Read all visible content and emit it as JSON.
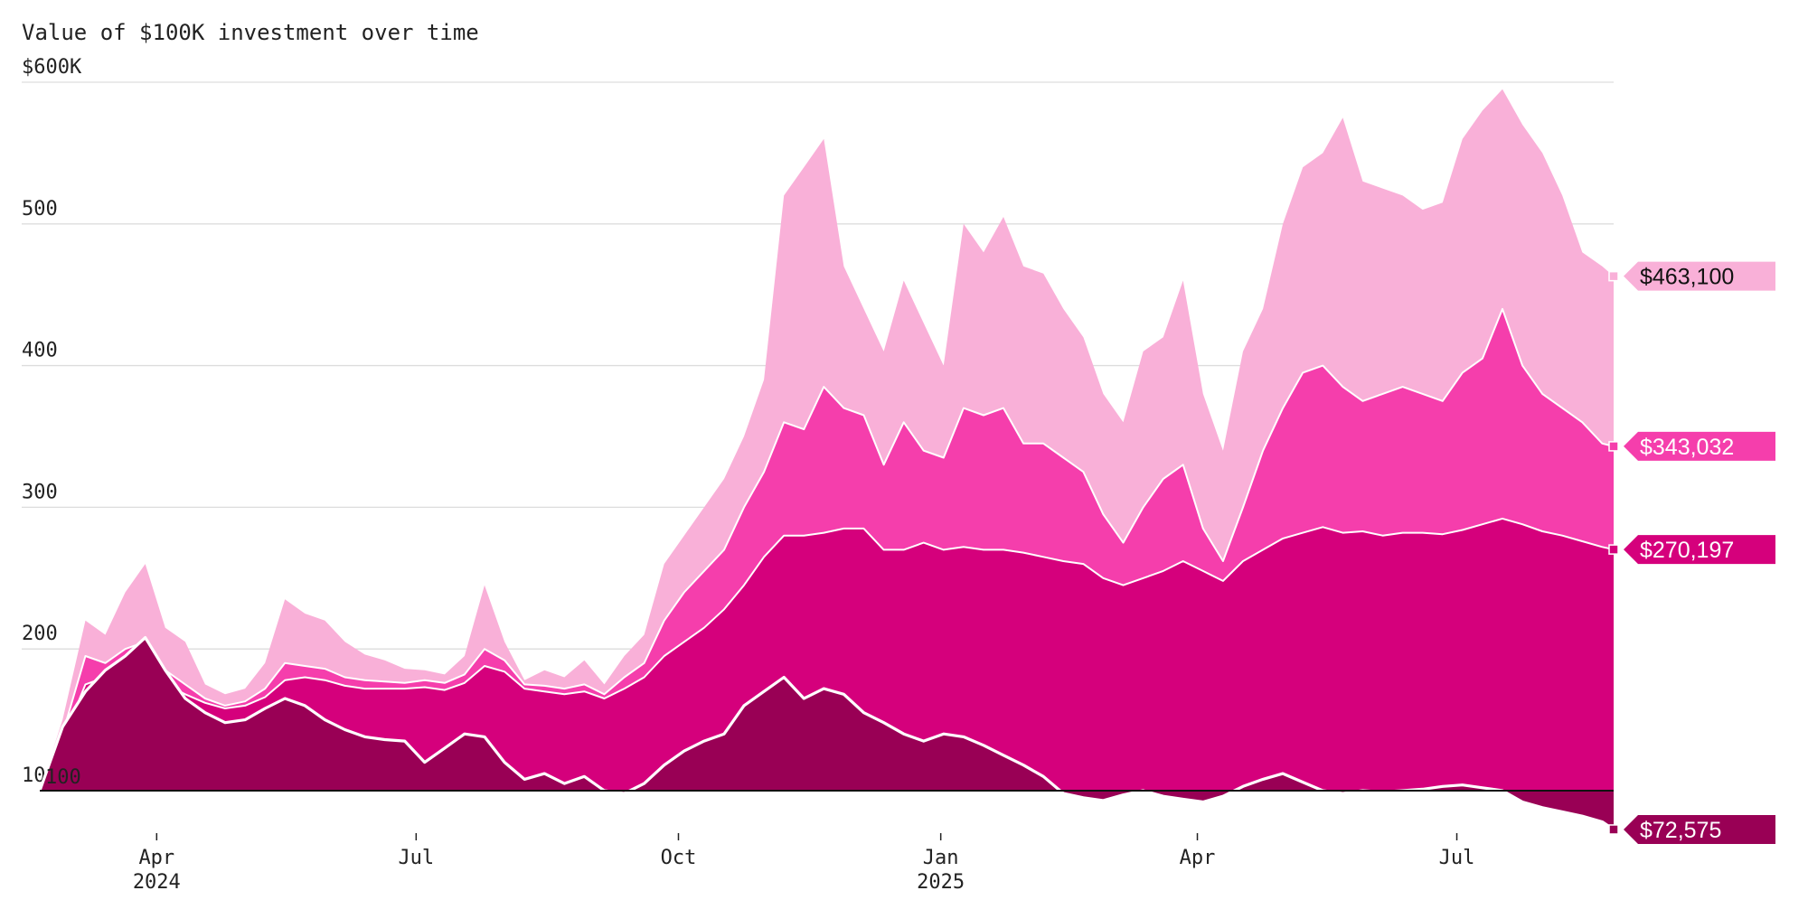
{
  "chart_data": {
    "type": "area",
    "title": "Value of $100K investment over time",
    "y_unit_label": "$600K",
    "ylim": [
      70,
      600
    ],
    "baseline": 100,
    "y_ticks": [
      {
        "value": 600,
        "label": "$600K"
      },
      {
        "value": 500,
        "label": "500"
      },
      {
        "value": 400,
        "label": "400"
      },
      {
        "value": 300,
        "label": "300"
      },
      {
        "value": 200,
        "label": "200"
      },
      {
        "value": 100,
        "label": "100"
      }
    ],
    "x_range": [
      "2024-02-20",
      "2025-08-25"
    ],
    "x_ticks": [
      {
        "date": "2024-04-01",
        "label": "Apr",
        "year": "2024"
      },
      {
        "date": "2024-07-01",
        "label": "Jul",
        "year": ""
      },
      {
        "date": "2024-10-01",
        "label": "Oct",
        "year": ""
      },
      {
        "date": "2025-01-01",
        "label": "Jan",
        "year": "2025"
      },
      {
        "date": "2025-04-01",
        "label": "Apr",
        "year": ""
      },
      {
        "date": "2025-07-01",
        "label": "Jul",
        "year": ""
      }
    ],
    "dates": [
      "2024-02-20",
      "2024-02-28",
      "2024-03-07",
      "2024-03-14",
      "2024-03-21",
      "2024-03-28",
      "2024-04-04",
      "2024-04-11",
      "2024-04-18",
      "2024-04-25",
      "2024-05-02",
      "2024-05-09",
      "2024-05-16",
      "2024-05-23",
      "2024-05-30",
      "2024-06-06",
      "2024-06-13",
      "2024-06-20",
      "2024-06-27",
      "2024-07-04",
      "2024-07-11",
      "2024-07-18",
      "2024-07-25",
      "2024-08-01",
      "2024-08-08",
      "2024-08-15",
      "2024-08-22",
      "2024-08-29",
      "2024-09-05",
      "2024-09-12",
      "2024-09-19",
      "2024-09-26",
      "2024-10-03",
      "2024-10-10",
      "2024-10-17",
      "2024-10-24",
      "2024-10-31",
      "2024-11-07",
      "2024-11-14",
      "2024-11-21",
      "2024-11-28",
      "2024-12-05",
      "2024-12-12",
      "2024-12-19",
      "2024-12-26",
      "2025-01-02",
      "2025-01-09",
      "2025-01-16",
      "2025-01-23",
      "2025-01-30",
      "2025-02-06",
      "2025-02-13",
      "2025-02-20",
      "2025-02-27",
      "2025-03-06",
      "2025-03-13",
      "2025-03-20",
      "2025-03-27",
      "2025-04-03",
      "2025-04-10",
      "2025-04-17",
      "2025-04-24",
      "2025-05-01",
      "2025-05-08",
      "2025-05-15",
      "2025-05-22",
      "2025-05-29",
      "2025-06-05",
      "2025-06-12",
      "2025-06-19",
      "2025-06-26",
      "2025-07-03",
      "2025-07-10",
      "2025-07-17",
      "2025-07-24",
      "2025-07-31",
      "2025-08-07",
      "2025-08-14",
      "2025-08-21",
      "2025-08-25"
    ],
    "series": [
      {
        "color": "#f9b0d8",
        "end_value": 463.1,
        "end_label": "$463,100",
        "label_text_color": "#111111",
        "values": [
          100,
          150,
          220,
          210,
          240,
          260,
          215,
          205,
          175,
          168,
          172,
          190,
          235,
          225,
          220,
          205,
          196,
          192,
          186,
          185,
          182,
          195,
          245,
          205,
          178,
          185,
          180,
          192,
          175,
          195,
          210,
          260,
          280,
          300,
          320,
          350,
          390,
          520,
          540,
          560,
          470,
          440,
          410,
          460,
          430,
          400,
          500,
          480,
          505,
          470,
          465,
          440,
          420,
          380,
          360,
          410,
          420,
          460,
          380,
          340,
          410,
          440,
          500,
          540,
          550,
          575,
          530,
          525,
          520,
          510,
          515,
          560,
          580,
          595,
          570,
          550,
          520,
          480,
          470,
          463.1
        ]
      },
      {
        "color": "#f53eac",
        "end_value": 343.032,
        "end_label": "$343,032",
        "label_text_color": "#ffffff",
        "values": [
          100,
          140,
          195,
          190,
          200,
          205,
          185,
          175,
          165,
          160,
          163,
          172,
          190,
          188,
          186,
          180,
          178,
          177,
          176,
          178,
          176,
          182,
          200,
          192,
          175,
          174,
          172,
          175,
          168,
          180,
          190,
          220,
          240,
          255,
          270,
          300,
          325,
          360,
          355,
          385,
          370,
          365,
          330,
          360,
          340,
          335,
          370,
          365,
          370,
          345,
          345,
          335,
          325,
          295,
          275,
          300,
          320,
          330,
          285,
          262,
          300,
          340,
          370,
          395,
          400,
          385,
          375,
          380,
          385,
          380,
          375,
          395,
          405,
          440,
          400,
          380,
          370,
          360,
          345,
          343.032
        ]
      },
      {
        "color": "#d5007c",
        "end_value": 270.197,
        "end_label": "$270,197",
        "label_text_color": "#ffffff",
        "values": [
          100,
          135,
          175,
          180,
          185,
          190,
          175,
          168,
          162,
          158,
          160,
          166,
          178,
          180,
          178,
          174,
          172,
          172,
          172,
          173,
          171,
          176,
          188,
          184,
          172,
          170,
          168,
          170,
          165,
          172,
          180,
          195,
          205,
          215,
          228,
          245,
          265,
          280,
          280,
          282,
          285,
          285,
          270,
          270,
          275,
          270,
          272,
          270,
          270,
          268,
          265,
          262,
          260,
          250,
          245,
          250,
          255,
          262,
          255,
          248,
          262,
          270,
          278,
          282,
          286,
          282,
          283,
          280,
          282,
          282,
          281,
          284,
          288,
          292,
          288,
          283,
          280,
          276,
          272,
          270.197
        ]
      },
      {
        "color": "#990055",
        "end_value": 72.575,
        "end_label": "$72,575",
        "label_text_color": "#ffffff",
        "values": [
          100,
          145,
          170,
          185,
          195,
          208,
          185,
          165,
          155,
          148,
          150,
          158,
          165,
          160,
          150,
          143,
          138,
          136,
          135,
          120,
          130,
          140,
          138,
          120,
          108,
          112,
          105,
          110,
          100,
          98,
          105,
          118,
          128,
          135,
          140,
          160,
          170,
          180,
          165,
          172,
          168,
          155,
          148,
          140,
          135,
          140,
          138,
          132,
          125,
          118,
          110,
          98,
          95,
          93,
          97,
          100,
          96,
          94,
          92,
          96,
          103,
          108,
          112,
          106,
          100,
          98,
          100,
          99,
          100,
          101,
          103,
          104,
          102,
          100,
          92,
          88,
          85,
          82,
          78,
          72.575
        ]
      }
    ]
  }
}
